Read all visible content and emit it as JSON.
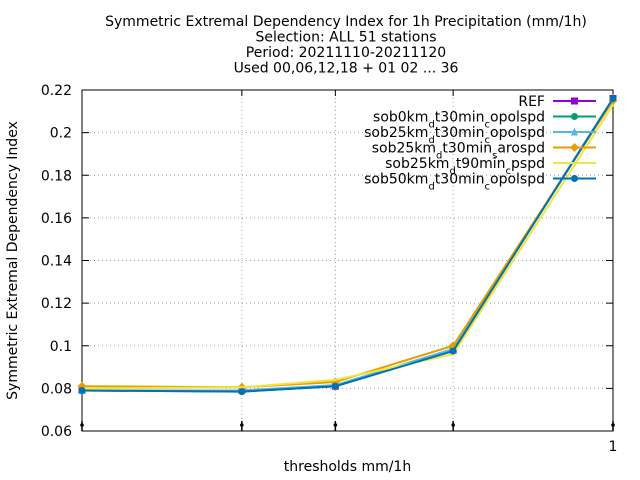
{
  "chart_data": {
    "type": "line",
    "title": [
      "Symmetric Extremal Dependency Index  for 1h Precipitation (mm/1h)",
      "Selection: ALL      51 stations",
      "Period: 20211110-20211120",
      "Used 00,06,12,18 + 01 02 ... 36"
    ],
    "xlabel": "thresholds mm/1h",
    "ylabel": "Symmetric Extremal Dependency Index",
    "x_scale": "log",
    "xlim": [
      0.1,
      1
    ],
    "ylim": [
      0.06,
      0.22
    ],
    "y_ticks": [
      "0.06",
      "0.08",
      "0.1",
      "0.12",
      "0.14",
      "0.16",
      "0.18",
      "0.2",
      "0.22"
    ],
    "x_tick_labels": [
      {
        "value": 1,
        "label": "1"
      }
    ],
    "grid": true,
    "legend_position": "top-right",
    "x": [
      0.1,
      0.2,
      0.3,
      0.5,
      1.0
    ],
    "series": [
      {
        "name": "REF",
        "name_parts": [
          [
            "REF",
            ""
          ]
        ],
        "color": "#9400d3",
        "marker": "square",
        "values": [
          0.079,
          0.079,
          0.081,
          0.098,
          0.216
        ]
      },
      {
        "name": "sob0km_dt30min_copolspd",
        "name_parts": [
          [
            "sob0km",
            ""
          ],
          [
            "d",
            "sub"
          ],
          [
            "t30min",
            ""
          ],
          [
            "c",
            "sub"
          ],
          [
            "opolspd",
            ""
          ]
        ],
        "color": "#009e73",
        "marker": "circle",
        "values": [
          0.079,
          0.0785,
          0.081,
          0.098,
          0.216
        ]
      },
      {
        "name": "sob25km_dt30min_copolspd",
        "name_parts": [
          [
            "sob25km",
            ""
          ],
          [
            "d",
            "sub"
          ],
          [
            "t30min",
            ""
          ],
          [
            "c",
            "sub"
          ],
          [
            "opolspd",
            ""
          ]
        ],
        "color": "#56b4e9",
        "marker": "triangle",
        "values": [
          0.079,
          0.079,
          0.0815,
          0.0985,
          0.216
        ]
      },
      {
        "name": "sob25km_dt30min_sarospd",
        "name_parts": [
          [
            "sob25km",
            ""
          ],
          [
            "d",
            "sub"
          ],
          [
            "t30min",
            ""
          ],
          [
            "s",
            "sub"
          ],
          [
            "arospd",
            ""
          ]
        ],
        "color": "#e69f00",
        "marker": "diamond",
        "values": [
          0.081,
          0.0805,
          0.083,
          0.1,
          0.215
        ]
      },
      {
        "name": "sob25km_dt90min_cpspd",
        "name_parts": [
          [
            "sob25km",
            ""
          ],
          [
            "d",
            "sub"
          ],
          [
            "t90min",
            ""
          ],
          [
            "c",
            "sub"
          ],
          [
            "pspd",
            ""
          ]
        ],
        "color": "#f0e442",
        "marker": "none",
        "values": [
          0.08,
          0.0805,
          0.084,
          0.096,
          0.213
        ]
      },
      {
        "name": "sob50km_dt30min_copolspd",
        "name_parts": [
          [
            "sob50km",
            ""
          ],
          [
            "d",
            "sub"
          ],
          [
            "t30min",
            ""
          ],
          [
            "c",
            "sub"
          ],
          [
            "opolspd",
            ""
          ]
        ],
        "color": "#0072b2",
        "marker": "circle",
        "values": [
          0.079,
          0.0785,
          0.081,
          0.0975,
          0.216
        ]
      }
    ]
  }
}
